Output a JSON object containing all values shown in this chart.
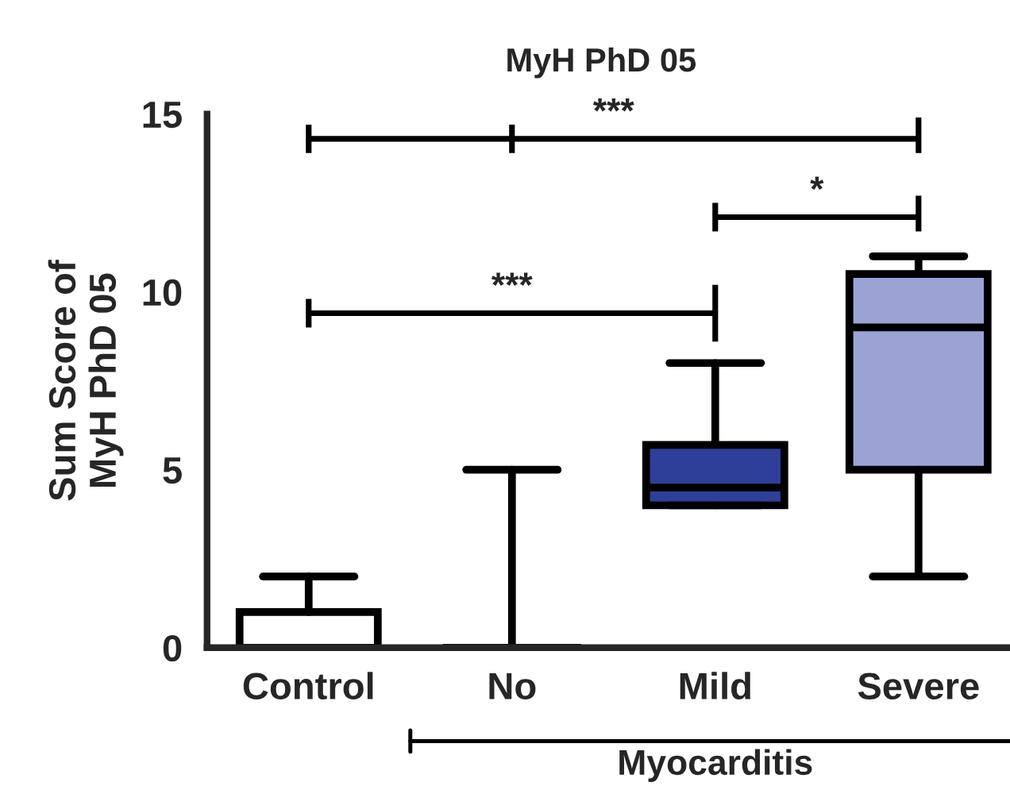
{
  "chart_data": {
    "type": "box",
    "title": "MyH PhD 05",
    "ylabel": "Sum Score of\nMyH PhD 05",
    "categories": [
      "Control",
      "No",
      "Mild",
      "Severe"
    ],
    "boxes": [
      {
        "low": 0,
        "q1": 0,
        "median": 0,
        "q3": 1,
        "high": 2
      },
      {
        "low": 0,
        "q1": 0,
        "median": 0,
        "q3": 0,
        "high": 5
      },
      {
        "low": 4,
        "q1": 4,
        "median": 4.5,
        "q3": 5.7,
        "high": 8
      },
      {
        "low": 2,
        "q1": 5,
        "median": 9,
        "q3": 10.5,
        "high": 11
      }
    ],
    "colors": [
      "#ffffff",
      "#000000",
      "#2e3f9a",
      "#9aa3d4"
    ],
    "ylim": [
      0,
      15
    ],
    "yticks": [
      0,
      5,
      10,
      15
    ],
    "grid": false,
    "legend": false,
    "annotations": [
      "***",
      "*",
      "***",
      "Myocarditis"
    ]
  }
}
